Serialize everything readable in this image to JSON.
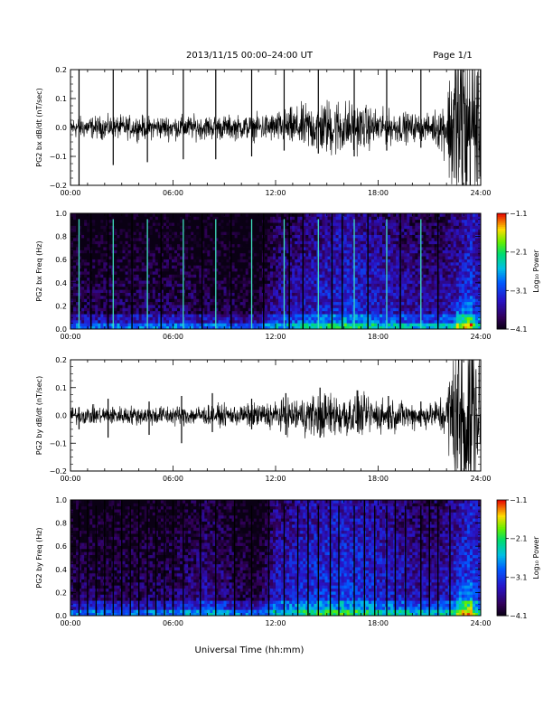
{
  "header": {
    "title": "2013/11/15  00:00–24:00 UT",
    "page": "Page 1/1"
  },
  "xlabel": "Universal Time (hh:mm)",
  "colorbar_label": "Log₁₀ Power",
  "chart_data": [
    {
      "type": "line",
      "ylabel": "PG2 bx dB/dt (nT/sec)",
      "xlim": [
        0,
        24
      ],
      "ylim": [
        -0.2,
        0.2
      ],
      "x_ticks": [
        "00:00",
        "06:00",
        "12:00",
        "18:00",
        "24:00"
      ],
      "y_ticks": [
        "0.2",
        "0.1",
        "0.0",
        "−0.1",
        "−0.2"
      ],
      "noise_envelope": {
        "x": [
          0,
          6,
          10,
          12,
          14,
          15.5,
          18,
          21,
          22,
          22.6,
          23.4,
          24
        ],
        "amp": [
          0.018,
          0.02,
          0.02,
          0.025,
          0.04,
          0.05,
          0.03,
          0.02,
          0.05,
          0.2,
          0.2,
          0.1
        ]
      },
      "spikes": [
        [
          0.5,
          -0.2,
          0.2
        ],
        [
          2.5,
          -0.13,
          0.2
        ],
        [
          4.5,
          -0.12,
          0.2
        ],
        [
          6.6,
          -0.11,
          0.2
        ],
        [
          8.5,
          -0.11,
          0.2
        ],
        [
          10.6,
          -0.1,
          0.2
        ],
        [
          12.5,
          -0.08,
          0.2
        ],
        [
          14.5,
          -0.09,
          0.2
        ],
        [
          16.6,
          -0.1,
          0.2
        ],
        [
          18.5,
          -0.08,
          0.2
        ],
        [
          20.5,
          -0.07,
          0.2
        ]
      ]
    },
    {
      "type": "heatmap",
      "ylabel": "PG2 bx Freq (Hz)",
      "xlim": [
        0,
        24
      ],
      "ylim": [
        0,
        1.0
      ],
      "zlim": [
        -4.1,
        -1.1
      ],
      "x_ticks": [
        "00:00",
        "06:00",
        "12:00",
        "18:00",
        "24:00"
      ],
      "y_ticks": [
        "1.0",
        "0.8",
        "0.6",
        "0.4",
        "0.2",
        "0.0"
      ],
      "colorbar_ticks": [
        "−1.1",
        "−2.1",
        "−3.1",
        "−4.1"
      ],
      "background_profile": {
        "x": [
          0,
          6,
          9,
          11,
          12,
          14,
          16,
          18,
          21,
          22.5,
          23.5,
          24
        ],
        "level": [
          -3.8,
          -3.75,
          -3.8,
          -3.95,
          -3.5,
          -3.3,
          -3.1,
          -3.25,
          -3.5,
          -3.3,
          -3.0,
          -3.3
        ]
      },
      "vertical_lines": [
        0.5,
        2.5,
        4.5,
        6.6,
        8.5,
        10.6,
        12.5,
        14.5,
        16.6,
        18.5,
        20.5
      ],
      "gap_lines": [
        1.2,
        2.2,
        3.6,
        5.3,
        7.7,
        9.4,
        11.3,
        12.8,
        13.6,
        15.3,
        15.9,
        17.4,
        19.3,
        21.5
      ]
    },
    {
      "type": "line",
      "ylabel": "PG2 by dB/dt (nT/sec)",
      "xlim": [
        0,
        24
      ],
      "ylim": [
        -0.2,
        0.2
      ],
      "x_ticks": [
        "00:00",
        "06:00",
        "12:00",
        "18:00",
        "24:00"
      ],
      "y_ticks": [
        "0.2",
        "0.1",
        "0.0",
        "−0.1",
        "−0.2"
      ],
      "noise_envelope": {
        "x": [
          0,
          6,
          10,
          12,
          14,
          15.5,
          18,
          21,
          22,
          22.6,
          23.4,
          24
        ],
        "amp": [
          0.015,
          0.017,
          0.018,
          0.025,
          0.035,
          0.04,
          0.03,
          0.02,
          0.04,
          0.2,
          0.2,
          0.08
        ]
      },
      "spikes": [
        [
          0.5,
          -0.05,
          0.03
        ],
        [
          2.2,
          -0.08,
          0.06
        ],
        [
          4.6,
          -0.07,
          0.05
        ],
        [
          6.5,
          -0.1,
          0.07
        ],
        [
          8.3,
          -0.06,
          0.08
        ],
        [
          10.6,
          -0.05,
          0.06
        ],
        [
          12.6,
          -0.07,
          0.08
        ],
        [
          14.6,
          -0.08,
          0.1
        ],
        [
          16.8,
          -0.06,
          0.09
        ],
        [
          18.6,
          -0.05,
          0.07
        ],
        [
          20.5,
          -0.04,
          0.05
        ]
      ]
    },
    {
      "type": "heatmap",
      "ylabel": "PG2 by Freq (Hz)",
      "xlim": [
        0,
        24
      ],
      "ylim": [
        0,
        1.0
      ],
      "zlim": [
        -4.1,
        -1.1
      ],
      "x_ticks": [
        "00:00",
        "06:00",
        "12:00",
        "18:00",
        "24:00"
      ],
      "y_ticks": [
        "1.0",
        "0.8",
        "0.6",
        "0.4",
        "0.2",
        "0.0"
      ],
      "colorbar_ticks": [
        "−1.1",
        "−2.1",
        "−3.1",
        "−4.1"
      ],
      "background_profile": {
        "x": [
          0,
          6,
          8,
          11,
          12,
          14,
          16,
          18,
          21,
          22.5,
          23.5,
          24
        ],
        "level": [
          -3.75,
          -3.7,
          -3.45,
          -3.9,
          -3.3,
          -3.1,
          -3.0,
          -3.15,
          -3.45,
          -3.2,
          -2.9,
          -3.2
        ]
      },
      "vertical_lines": [
        0.5,
        1.5,
        2.5,
        3.5,
        4.5,
        5.5,
        6.6,
        8.5,
        10.6,
        12.5,
        13.3,
        14.5,
        15.7,
        16.6,
        17.8,
        18.5,
        19.6,
        20.5,
        21.5,
        22.2
      ],
      "gap_lines": [
        1.0,
        2.0,
        3.0,
        4.0,
        5.0,
        6.0,
        7.6,
        9.6,
        11.6,
        13.9,
        15.2,
        17.2,
        19.0,
        21.0
      ]
    }
  ]
}
